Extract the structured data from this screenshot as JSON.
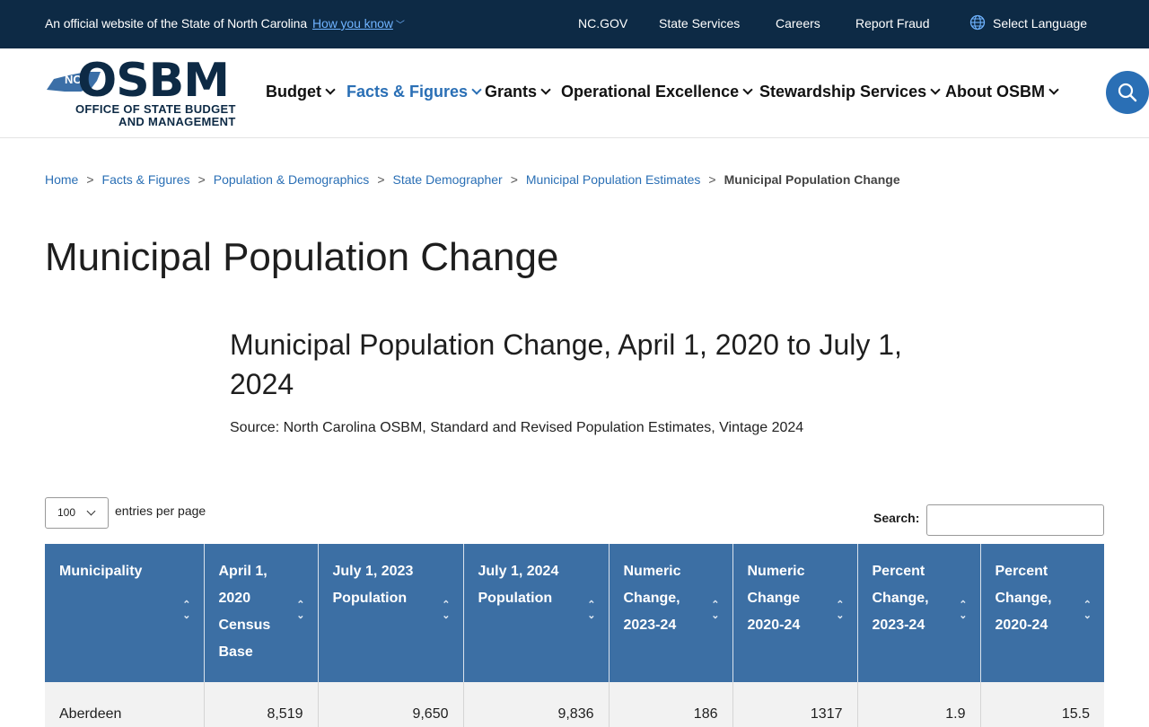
{
  "topbar": {
    "official_text": "An official website of the State of North Carolina",
    "how_you_know": "How you know",
    "links": [
      "NC.GOV",
      "State Services",
      "Careers",
      "Report Fraud"
    ],
    "language": "Select Language"
  },
  "logo": {
    "mark": "NC",
    "name": "OSBM",
    "line1": "OFFICE OF STATE BUDGET",
    "line2": "AND MANAGEMENT"
  },
  "nav": {
    "items": [
      {
        "label": "Budget",
        "active": false
      },
      {
        "label": "Facts & Figures",
        "active": true
      },
      {
        "label": "Grants",
        "active": false
      },
      {
        "label": "Operational Excellence",
        "active": false
      },
      {
        "label": "Stewardship Services",
        "active": false
      },
      {
        "label": "About OSBM",
        "active": false
      }
    ]
  },
  "breadcrumb": {
    "items": [
      "Home",
      "Facts & Figures",
      "Population & Demographics",
      "State Demographer",
      "Municipal Population Estimates"
    ],
    "current": "Municipal Population Change"
  },
  "page": {
    "title": "Municipal Population Change",
    "subtitle": "Municipal Population Change, April 1, 2020 to July 1, 2024",
    "source": "Source: North Carolina OSBM, Standard and Revised Population Estimates, Vintage 2024"
  },
  "controls": {
    "per_page_value": "100",
    "per_page_label": "entries per page",
    "search_label": "Search:",
    "search_value": ""
  },
  "table": {
    "headers": [
      "Municipality",
      "April 1, 2020 Census Base",
      "July 1, 2023 Population",
      "July 1, 2024 Population",
      "Numeric Change, 2023-24",
      "Numeric Change 2020-24",
      "Percent Change, 2023-24",
      "Percent Change, 2020-24"
    ],
    "rows": [
      [
        "Aberdeen",
        "8,519",
        "9,650",
        "9,836",
        "186",
        "1317",
        "1.9",
        "15.5"
      ]
    ]
  },
  "colors": {
    "topbar_bg": "#0d2a45",
    "accent": "#2a6fb5",
    "table_header_bg": "#3c6fa4"
  }
}
